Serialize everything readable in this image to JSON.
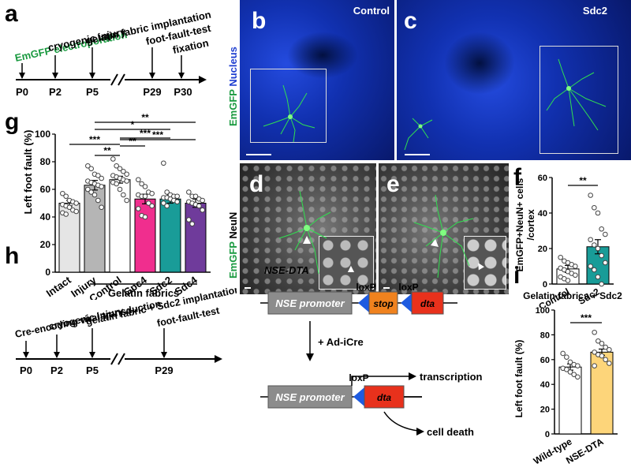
{
  "panels": {
    "a": "a",
    "b": "b",
    "c": "c",
    "d": "d",
    "e": "e",
    "f": "f",
    "g": "g",
    "h": "h",
    "i": "i"
  },
  "timeline_a": {
    "events": [
      "EmGFP electroporation",
      "cryogenic injury",
      "gelatin fabric implantation",
      "foot-fault-test",
      "fixation"
    ],
    "ticks": [
      "P0",
      "P2",
      "P5",
      "P29",
      "P30"
    ]
  },
  "timeline_h": {
    "events": [
      "Cre-encoding viral transduction",
      "cryogenic injury",
      "gelatin fabric + Sdc2 implantation",
      "foot-fault-test"
    ],
    "ticks": [
      "P0",
      "P2",
      "P5",
      "P29"
    ]
  },
  "micro": {
    "row1_ylabel_green": "EmGFP",
    "row1_ylabel_blue": "Nucleus",
    "row2_ylabel_green": "EmGFP",
    "row2_ylabel_white": "NeuN",
    "control_label": "Control",
    "sdc2_label": "Sdc2"
  },
  "dta": {
    "title": "NSE-DTA",
    "promoter": "NSE promoter",
    "loxp": "loxP",
    "stop": "stop",
    "dta": "dta",
    "adicre": "+ Ad-iCre",
    "transcription": "transcription",
    "death": "cell death"
  },
  "chart_data": [
    {
      "panel": "g",
      "type": "bar",
      "ylabel": "Left foot fault (%)",
      "ylim": [
        0,
        100
      ],
      "yticks": [
        0,
        20,
        40,
        60,
        80,
        100
      ],
      "categories": [
        "Intact",
        "Injury",
        "Control",
        "Gpc4",
        "Sdc2",
        "Sdc4"
      ],
      "group_label": "Gelatin fabrics",
      "values": [
        50,
        63,
        67,
        53,
        53,
        50
      ],
      "errors": [
        2,
        3.5,
        2.5,
        3.5,
        3,
        3
      ],
      "colors": [
        "#e5e5e5",
        "#b5b5b5",
        "#ffffff",
        "#f02e8e",
        "#199c98",
        "#6f3b9b"
      ],
      "points": [
        [
          57,
          55,
          52,
          51,
          50,
          49,
          48,
          47,
          45,
          44,
          43,
          42
        ],
        [
          77,
          75,
          71,
          70,
          68,
          66,
          65,
          64,
          63,
          62,
          60,
          58,
          56,
          52,
          47
        ],
        [
          82,
          77,
          75,
          73,
          71,
          70,
          69,
          68,
          67,
          66,
          65,
          64,
          60,
          56,
          52
        ],
        [
          67,
          64,
          62,
          58,
          57,
          56,
          55,
          55,
          50,
          48,
          46,
          41,
          40
        ],
        [
          79,
          58,
          56,
          55,
          55,
          54,
          54,
          53,
          52,
          51,
          50,
          48
        ],
        [
          58,
          55,
          55,
          53,
          52,
          51,
          50,
          49,
          48,
          45,
          38,
          35
        ]
      ],
      "significance": [
        {
          "from": 1,
          "to": 2,
          "label": "**"
        },
        {
          "from": 0,
          "to": 2,
          "label": "***"
        },
        {
          "from": 1,
          "to": 4,
          "label": "*"
        },
        {
          "from": 2,
          "to": 3,
          "label": "**"
        },
        {
          "from": 2,
          "to": 4,
          "label": "***"
        },
        {
          "from": 2,
          "to": 5,
          "label": "***"
        },
        {
          "from": 1,
          "to": 5,
          "label": "**"
        }
      ]
    },
    {
      "panel": "f",
      "type": "bar",
      "ylabel": "EmGFP+NeuN+ cells /cortex",
      "ylim": [
        0,
        60
      ],
      "yticks": [
        0,
        20,
        40,
        60
      ],
      "categories": [
        "Control",
        "Sdc2"
      ],
      "values": [
        8.5,
        21
      ],
      "errors": [
        2,
        4
      ],
      "colors": [
        "#ffffff",
        "#199c98"
      ],
      "points": [
        [
          15,
          13,
          12,
          11,
          10,
          9,
          8,
          7,
          6,
          5,
          4,
          3,
          2
        ],
        [
          50,
          43,
          40,
          31,
          28,
          25,
          22,
          20,
          16,
          12,
          10,
          8,
          4,
          0
        ]
      ],
      "significance": [
        {
          "from": 0,
          "to": 1,
          "label": "**"
        }
      ]
    },
    {
      "panel": "i",
      "type": "bar",
      "title": "Gelatin fabrics + Sdc2",
      "ylabel": "Left foot fault (%)",
      "ylim": [
        0,
        100
      ],
      "yticks": [
        0,
        20,
        40,
        60,
        80,
        100
      ],
      "categories": [
        "Wild-type",
        "NSE-DTA"
      ],
      "values": [
        54,
        66
      ],
      "errors": [
        2.5,
        2.5
      ],
      "colors": [
        "#ffffff",
        "#fdd57a"
      ],
      "points": [
        [
          65,
          62,
          58,
          56,
          55,
          53,
          52,
          50,
          48,
          46
        ],
        [
          82,
          75,
          73,
          70,
          68,
          66,
          64,
          63,
          60,
          57,
          55
        ]
      ],
      "significance": [
        {
          "from": 0,
          "to": 1,
          "label": "***"
        }
      ]
    }
  ]
}
